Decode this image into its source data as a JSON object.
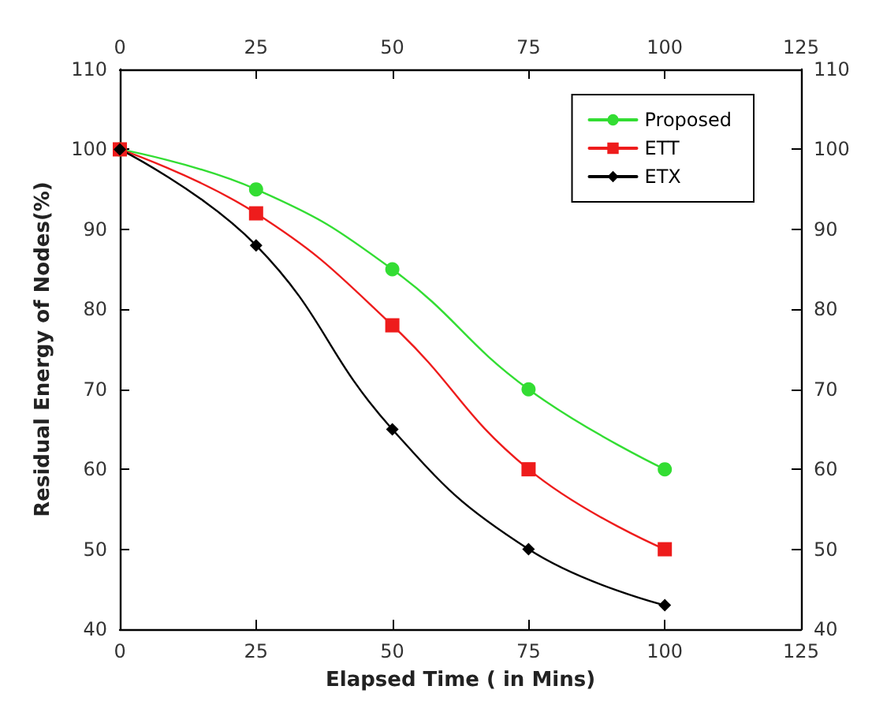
{
  "chart_data": {
    "type": "line",
    "xlabel": "Elapsed Time ( in Mins)",
    "ylabel": "Residual Energy of Nodes(%)",
    "x": [
      0,
      25,
      50,
      75,
      100
    ],
    "series": [
      {
        "name": "Proposed",
        "color": "#33dd33",
        "marker": "circle",
        "values": [
          100,
          95,
          85,
          70,
          60
        ]
      },
      {
        "name": "ETT",
        "color": "#ee1c1c",
        "marker": "square",
        "values": [
          100,
          92,
          78,
          60,
          50
        ]
      },
      {
        "name": "ETX",
        "color": "#000000",
        "marker": "diamond",
        "values": [
          100,
          88,
          65,
          50,
          43
        ]
      }
    ],
    "xlim": [
      0,
      125
    ],
    "xticks": [
      0,
      25,
      50,
      75,
      100,
      125
    ],
    "x2lim": [
      0,
      125
    ],
    "x2ticks": [
      0,
      25,
      50,
      75,
      100,
      125
    ],
    "ylim": [
      40,
      110
    ],
    "yticks": [
      40,
      50,
      60,
      70,
      80,
      90,
      100,
      110
    ],
    "y2lim": [
      40,
      110
    ],
    "y2ticks": [
      40,
      50,
      60,
      70,
      80,
      90,
      100,
      110
    ],
    "grid": false,
    "legend": "top right",
    "line_style": "solid"
  }
}
